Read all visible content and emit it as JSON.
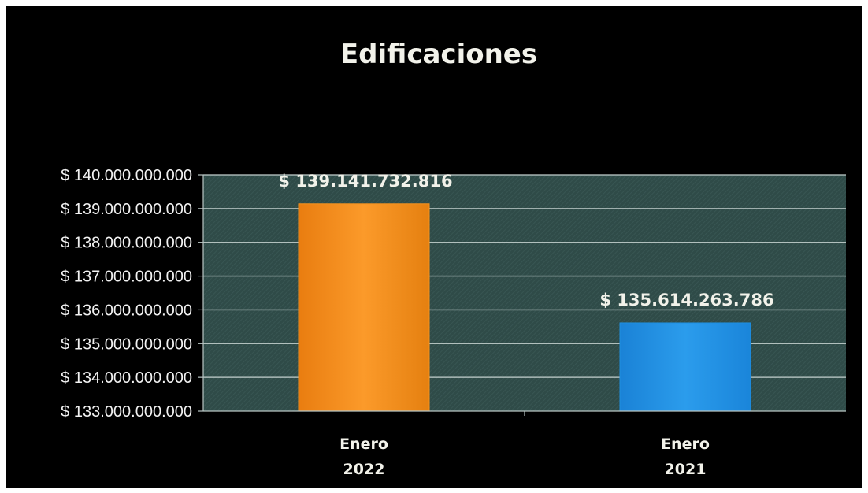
{
  "chart_data": {
    "type": "bar",
    "title": "Edificaciones",
    "xlabel": "",
    "ylabel": "",
    "categories": [
      [
        "Enero",
        "2022"
      ],
      [
        "Enero",
        "2021"
      ]
    ],
    "values": [
      139141732816,
      135614263786
    ],
    "data_labels": [
      "$ 139.141.732.816",
      "$ 135.614.263.786"
    ],
    "ylim": [
      133000000000,
      140000000000
    ],
    "y_ticks": [
      133000000000,
      134000000000,
      135000000000,
      136000000000,
      137000000000,
      138000000000,
      139000000000,
      140000000000
    ],
    "y_tick_labels": [
      "$ 133.000.000.000",
      "$ 134.000.000.000",
      "$ 135.000.000.000",
      "$ 136.000.000.000",
      "$ 137.000.000.000",
      "$ 138.000.000.000",
      "$ 139.000.000.000",
      "$ 140.000.000.000"
    ],
    "bar_colors": [
      "#f7931e",
      "#1f8fe0"
    ],
    "plot_background": "#2e4a47",
    "grid": true,
    "legend": false
  }
}
